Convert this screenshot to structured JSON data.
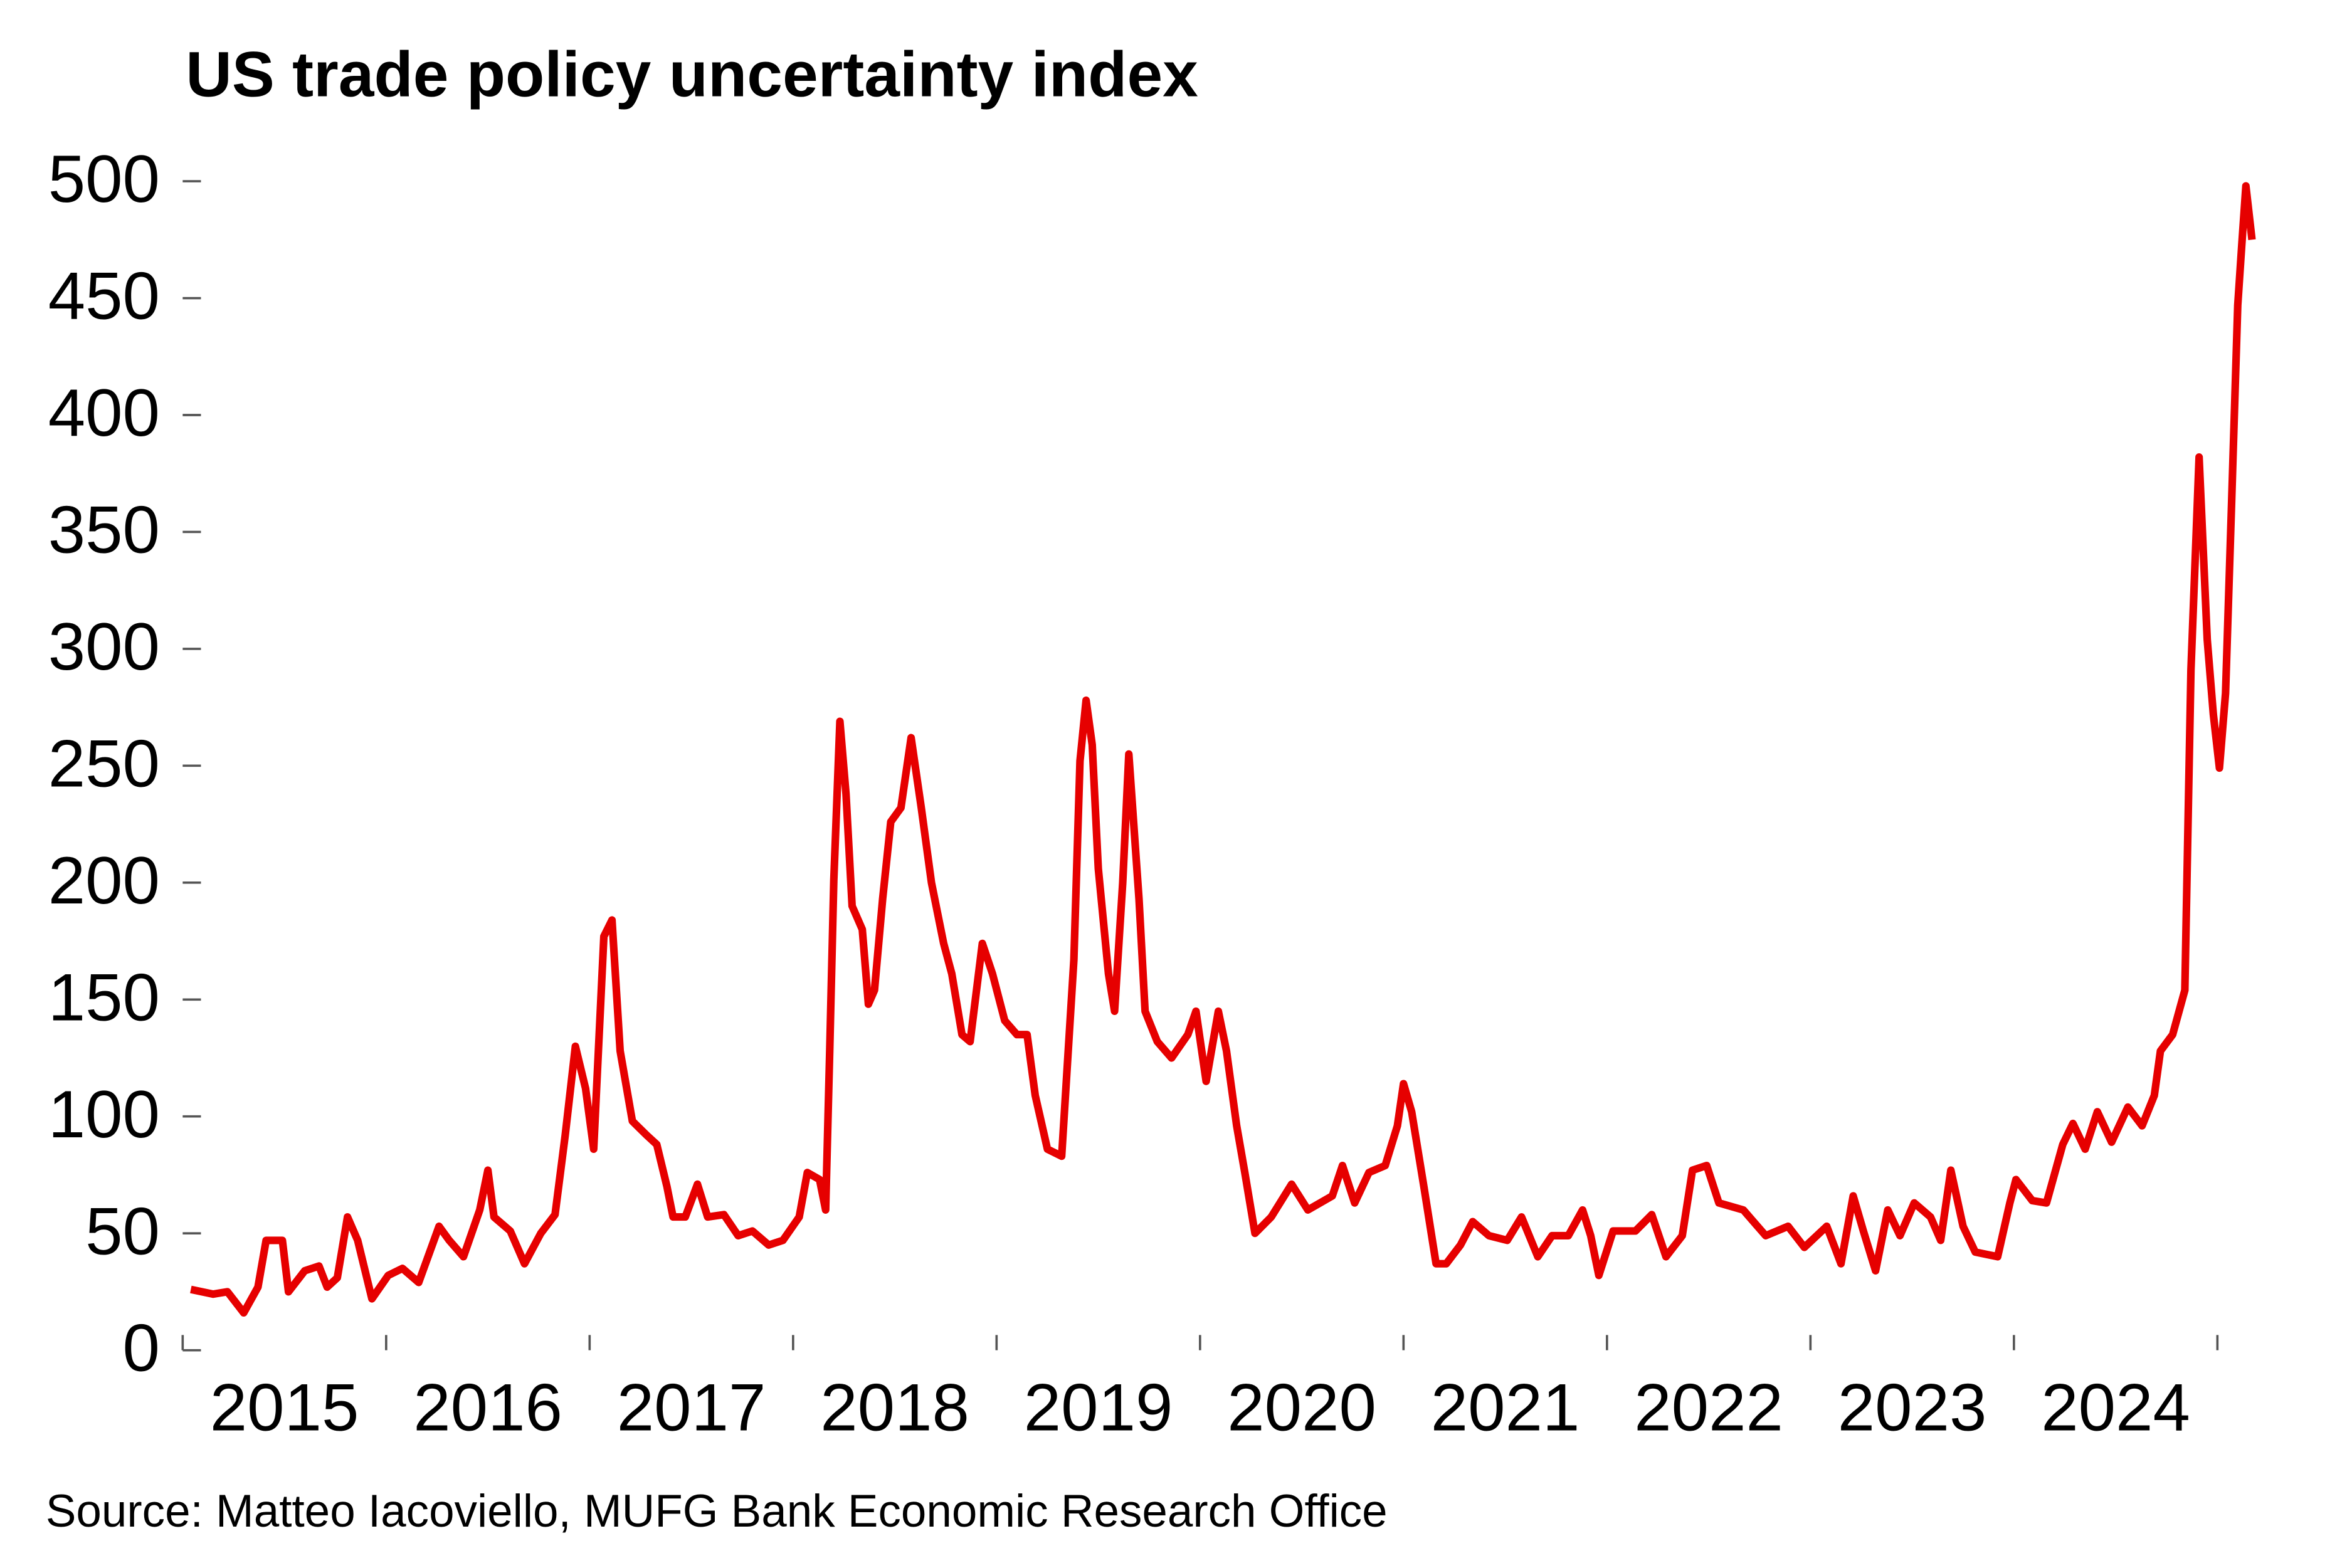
{
  "chart_data": {
    "type": "line",
    "title": "US trade policy uncertainty index",
    "source": "Source: Matteo Iacoviello, MUFG Bank Economic Research Office",
    "x": [
      2015.04,
      2015.15,
      2015.22,
      2015.3,
      2015.37,
      2015.41,
      2015.49,
      2015.52,
      2015.6,
      2015.67,
      2015.71,
      2015.76,
      2015.81,
      2015.86,
      2015.93,
      2016.01,
      2016.08,
      2016.16,
      2016.26,
      2016.31,
      2016.38,
      2016.46,
      2016.5,
      2016.53,
      2016.61,
      2016.68,
      2016.76,
      2016.83,
      2016.88,
      2016.93,
      2016.98,
      2017.02,
      2017.07,
      2017.11,
      2017.15,
      2017.21,
      2017.28,
      2017.33,
      2017.38,
      2017.41,
      2017.47,
      2017.53,
      2017.58,
      2017.66,
      2017.73,
      2017.8,
      2017.88,
      2017.95,
      2018.03,
      2018.07,
      2018.13,
      2018.16,
      2018.18,
      2018.2,
      2018.23,
      2018.26,
      2018.29,
      2018.34,
      2018.37,
      2018.4,
      2018.44,
      2018.48,
      2018.53,
      2018.58,
      2018.63,
      2018.68,
      2018.74,
      2018.78,
      2018.83,
      2018.87,
      2018.93,
      2018.98,
      2019.04,
      2019.1,
      2019.15,
      2019.19,
      2019.25,
      2019.32,
      2019.38,
      2019.41,
      2019.44,
      2019.47,
      2019.5,
      2019.55,
      2019.58,
      2019.62,
      2019.65,
      2019.7,
      2019.73,
      2019.79,
      2019.86,
      2019.94,
      2019.98,
      2020.03,
      2020.09,
      2020.13,
      2020.18,
      2020.22,
      2020.27,
      2020.35,
      2020.45,
      2020.53,
      2020.65,
      2020.7,
      2020.76,
      2020.83,
      2020.91,
      2020.97,
      2021.0,
      2021.04,
      2021.1,
      2021.16,
      2021.21,
      2021.28,
      2021.34,
      2021.42,
      2021.51,
      2021.58,
      2021.66,
      2021.73,
      2021.81,
      2021.88,
      2021.92,
      2021.96,
      2022.03,
      2022.14,
      2022.22,
      2022.29,
      2022.37,
      2022.42,
      2022.49,
      2022.55,
      2022.67,
      2022.78,
      2022.89,
      2022.97,
      2023.08,
      2023.15,
      2023.21,
      2023.26,
      2023.32,
      2023.38,
      2023.44,
      2023.51,
      2023.59,
      2023.64,
      2023.69,
      2023.75,
      2023.81,
      2023.92,
      2023.98,
      2024.01,
      2024.09,
      2024.16,
      2024.24,
      2024.29,
      2024.35,
      2024.41,
      2024.48,
      2024.56,
      2024.63,
      2024.69,
      2024.72,
      2024.78,
      2024.84,
      2024.87,
      2024.91,
      2024.95,
      2024.98,
      2025.01,
      2025.04,
      2025.07,
      2025.1,
      2025.12,
      2025.14,
      2025.17
    ],
    "series": [
      {
        "color": "#e60000",
        "values": [
          26,
          24,
          25,
          16,
          27,
          47,
          47,
          25,
          34,
          36,
          27,
          31,
          57,
          47,
          22,
          32,
          35,
          29,
          53,
          47,
          40,
          60,
          77,
          57,
          51,
          37,
          50,
          58,
          92,
          130,
          112,
          86,
          177,
          184,
          128,
          98,
          92,
          88,
          70,
          57,
          57,
          71,
          57,
          58,
          49,
          51,
          45,
          47,
          57,
          76,
          73,
          60,
          128,
          201,
          269,
          238,
          190,
          180,
          148,
          154,
          193,
          226,
          232,
          262,
          232,
          200,
          174,
          161,
          135,
          132,
          174,
          161,
          141,
          135,
          135,
          109,
          86,
          83,
          167,
          252,
          278,
          259,
          206,
          161,
          145,
          200,
          255,
          193,
          145,
          132,
          125,
          135,
          145,
          115,
          145,
          128,
          96,
          76,
          50,
          57,
          71,
          60,
          66,
          79,
          63,
          76,
          79,
          96,
          114,
          102,
          70,
          37,
          37,
          45,
          55,
          49,
          47,
          57,
          40,
          49,
          49,
          60,
          49,
          32,
          51,
          51,
          58,
          40,
          49,
          77,
          79,
          63,
          60,
          49,
          53,
          44,
          53,
          37,
          66,
          51,
          34,
          60,
          49,
          63,
          57,
          47,
          77,
          53,
          42,
          40,
          63,
          73,
          64,
          63,
          88,
          97,
          86,
          102,
          89,
          104,
          96,
          109,
          128,
          135,
          154,
          291,
          382,
          304,
          272,
          249,
          281,
          363,
          447,
          473,
          498,
          475
        ]
      }
    ],
    "ylim": [
      0,
      500
    ],
    "yticks": [
      0,
      50,
      100,
      150,
      200,
      250,
      300,
      350,
      400,
      450,
      500
    ],
    "xlim": [
      2015,
      2025.25
    ],
    "xtick_marks": [
      2015,
      2016,
      2017,
      2018,
      2019,
      2020,
      2021,
      2022,
      2023,
      2024,
      2025
    ],
    "year_labels": [
      2015,
      2016,
      2017,
      2018,
      2019,
      2020,
      2021,
      2022,
      2023,
      2024
    ]
  }
}
